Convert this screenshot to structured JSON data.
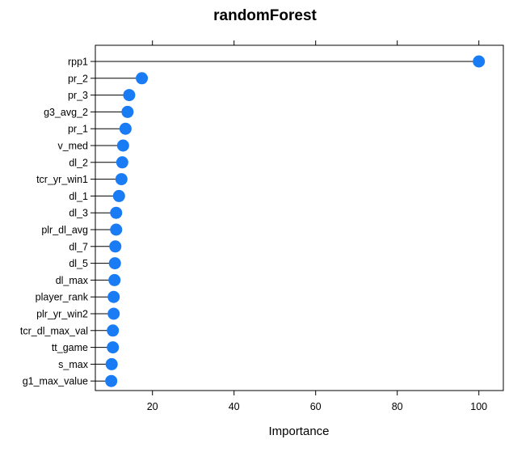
{
  "chart_data": {
    "type": "dotplot",
    "title": "randomForest",
    "xlabel": "Importance",
    "ylabel": "",
    "xlim": [
      6,
      106
    ],
    "xticks": [
      20,
      40,
      60,
      80,
      100
    ],
    "grid": false,
    "legend": "none",
    "dot_color": "#1a7cf5",
    "categories": [
      "rpp1",
      "pr_2",
      "pr_3",
      "g3_avg_2",
      "pr_1",
      "v_med",
      "dl_2",
      "tcr_yr_win1",
      "dl_1",
      "dl_3",
      "plr_dl_avg",
      "dl_7",
      "dl_5",
      "dl_max",
      "player_rank",
      "plr_yr_win2",
      "tcr_dl_max_val",
      "tt_game",
      "s_max",
      "g1_max_value"
    ],
    "values": [
      100,
      17.4,
      14.3,
      13.9,
      13.4,
      12.8,
      12.6,
      12.4,
      11.8,
      11.1,
      11.1,
      10.9,
      10.8,
      10.7,
      10.5,
      10.5,
      10.3,
      10.3,
      10.0,
      9.9
    ]
  }
}
